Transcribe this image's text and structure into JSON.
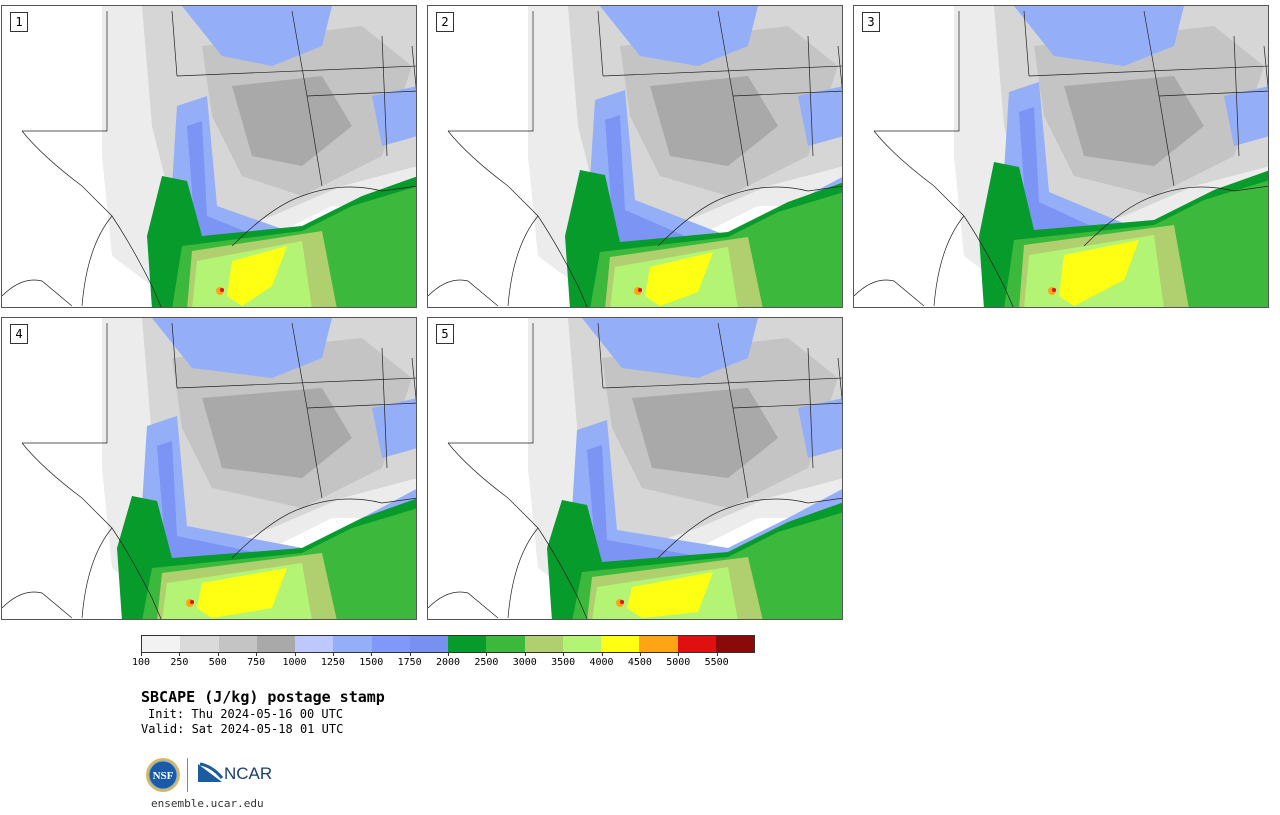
{
  "panels": [
    {
      "label": "1"
    },
    {
      "label": "2"
    },
    {
      "label": "3"
    },
    {
      "label": "4"
    },
    {
      "label": "5"
    }
  ],
  "colorbar": {
    "ticks": [
      "100",
      "250",
      "500",
      "750",
      "1000",
      "1250",
      "1500",
      "1750",
      "2000",
      "2500",
      "3000",
      "3500",
      "4000",
      "4500",
      "5000",
      "5500"
    ],
    "colors": [
      "#f2f2f2",
      "#dadada",
      "#c4c4c4",
      "#a9a9a9",
      "#bcc8ff",
      "#94aef8",
      "#8098f8",
      "#7890f0",
      "#079b2b",
      "#3cb93c",
      "#b0d070",
      "#b4f474",
      "#ffff14",
      "#ffa414",
      "#e01010",
      "#8a0a0a"
    ]
  },
  "title": "SBCAPE (J/kg) postage stamp",
  "init": "Init: Thu 2024-05-16 00 UTC",
  "valid": "Valid: Sat 2024-05-18 01 UTC",
  "logos": {
    "nsf_text": "NSF",
    "ncar_text": "NCAR"
  },
  "site": "ensemble.ucar.edu"
}
